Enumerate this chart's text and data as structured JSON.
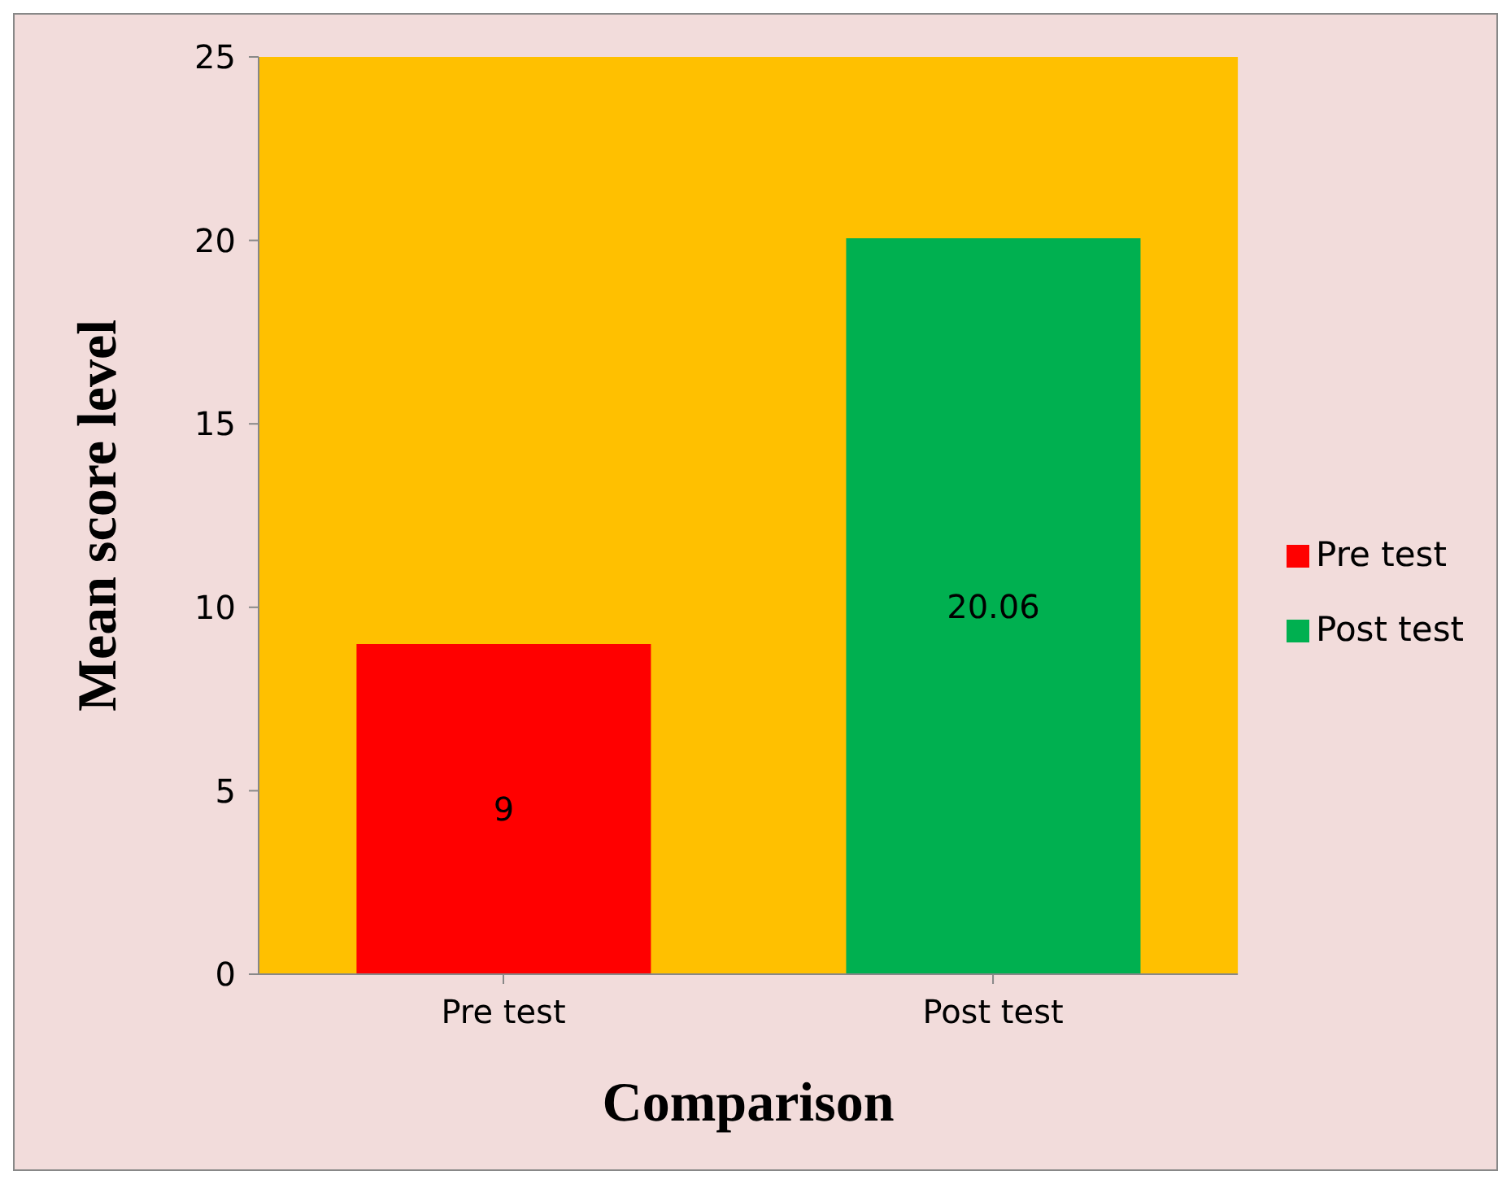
{
  "chart_data": {
    "type": "bar",
    "xlabel": "Comparison",
    "ylabel": "Mean score level",
    "categories": [
      "Pre test",
      "Post test"
    ],
    "series": [
      {
        "name": "Pre test",
        "color": "#ff0000",
        "values": [
          9,
          null
        ]
      },
      {
        "name": "Post test",
        "color": "#00b050",
        "values": [
          null,
          20.06
        ]
      }
    ],
    "ylim": [
      0,
      25
    ],
    "yticks": [
      0,
      5,
      10,
      15,
      20,
      25
    ],
    "legend": "right",
    "data_labels": true
  }
}
